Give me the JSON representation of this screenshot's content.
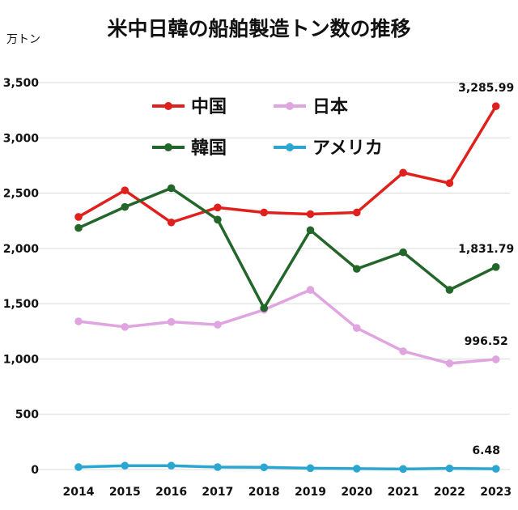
{
  "chart_data": {
    "type": "line",
    "title": "米中日韓の船舶製造トン数の推移",
    "unit": "万トン",
    "x": [
      "2014",
      "2015",
      "2016",
      "2017",
      "2018",
      "2019",
      "2020",
      "2021",
      "2022",
      "2023"
    ],
    "ylim": [
      0,
      3500
    ],
    "yticks": [
      0,
      500,
      1000,
      1500,
      2000,
      2500,
      3000,
      3500
    ],
    "ytick_labels": [
      "0",
      "500",
      "1,000",
      "1,500",
      "2,000",
      "2,500",
      "3,000",
      "3,500"
    ],
    "grid": true,
    "legend_position": "top-left",
    "series": [
      {
        "name": "中国",
        "color": "#e0201c",
        "values": [
          2285,
          2525,
          2235,
          2370,
          2325,
          2310,
          2325,
          2685,
          2590,
          3285.99
        ]
      },
      {
        "name": "日本",
        "color": "#e0a5e0",
        "values": [
          1340,
          1290,
          1335,
          1310,
          1445,
          1625,
          1280,
          1070,
          960,
          996.52
        ]
      },
      {
        "name": "韓国",
        "color": "#22662a",
        "values": [
          2185,
          2375,
          2545,
          2260,
          1460,
          2165,
          1815,
          1965,
          1625,
          1831.79
        ]
      },
      {
        "name": "アメリカ",
        "color": "#2aa6d0",
        "values": [
          22,
          35,
          35,
          22,
          20,
          12,
          8,
          5,
          10,
          6.48
        ]
      }
    ],
    "annotations": [
      {
        "series": "中国",
        "text": "3,285.99"
      },
      {
        "series": "韓国",
        "text": "1,831.79"
      },
      {
        "series": "日本",
        "text": "996.52"
      },
      {
        "series": "アメリカ",
        "text": "6.48"
      }
    ]
  }
}
